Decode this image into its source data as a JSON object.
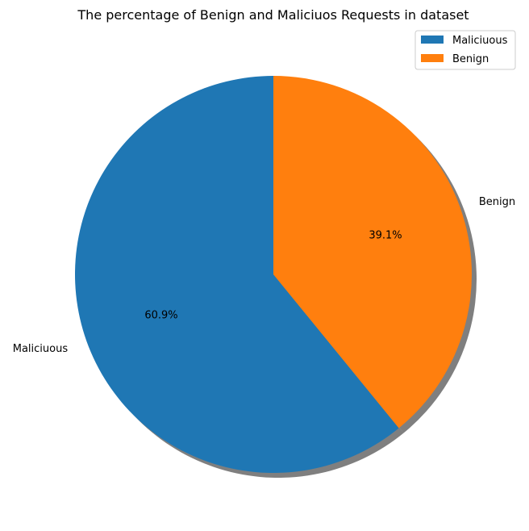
{
  "chart_data": {
    "type": "pie",
    "title": "The percentage of Benign and Maliciuos Requests in dataset",
    "slices": [
      {
        "label": "Maliciuous",
        "value": 60.9,
        "pct_label": "60.9%",
        "color": "#1f77b4"
      },
      {
        "label": "Benign",
        "value": 39.1,
        "pct_label": "39.1%",
        "color": "#ff7f0e"
      }
    ],
    "start_angle_deg": 90,
    "direction": "counterclockwise",
    "shadow": true,
    "legend": {
      "placement": "top-right",
      "entries": [
        "Maliciuous",
        "Benign"
      ]
    }
  }
}
